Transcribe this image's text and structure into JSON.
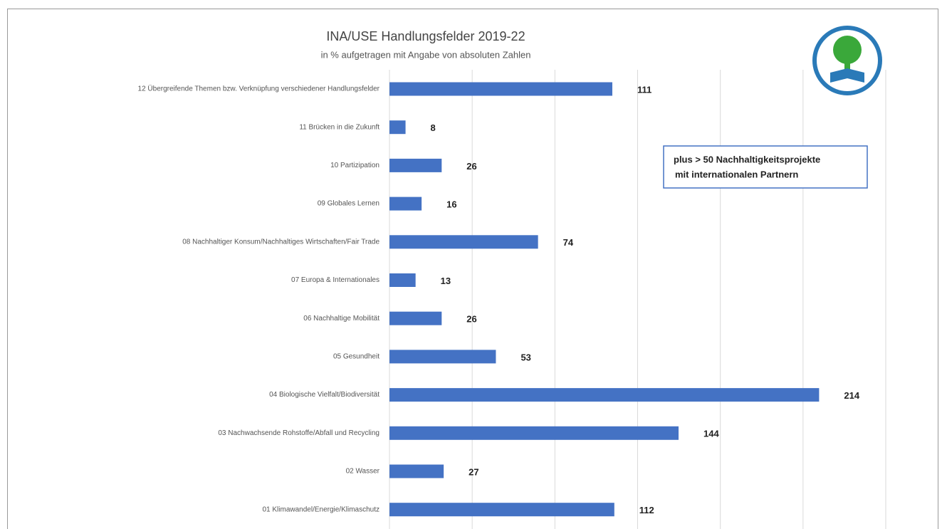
{
  "chart_data": {
    "type": "barh",
    "title": "INA/USE Handlungsfelder 2019-22",
    "subtitle": "in % aufgetragen mit Angabe von absoluten Zahlen",
    "annotation": [
      "plus > 50  Nachhaltigkeitsprojekte",
      "mit internationalen Partnern"
    ],
    "categories": [
      "12 Übergreifende Themen bzw. Verknüpfung verschiedener Handlungsfelder",
      "11 Brücken in die Zukunft",
      "10 Partizipation",
      "09 Globales Lernen",
      "08 Nachhaltiger Konsum/Nachhaltiges Wirtschaften/Fair Trade",
      "07 Europa & Internationales",
      "06 Nachhaltige Mobilität",
      "05 Gesundheit",
      "04 Biologische Vielfalt/Biodiversität",
      "03 Nachwachsende Rohstoffe/Abfall und Recycling",
      "02 Wasser",
      "01 Klimawandel/Energie/Klimaschutz"
    ],
    "values": [
      111,
      8,
      26,
      16,
      74,
      13,
      26,
      53,
      214,
      144,
      27,
      112
    ],
    "color": "#4472c4",
    "xlim": [
      0,
      247.2
    ],
    "xticks": [
      0,
      41.2,
      82.4,
      123.6,
      164.8,
      206,
      247.2
    ],
    "grid": true
  }
}
